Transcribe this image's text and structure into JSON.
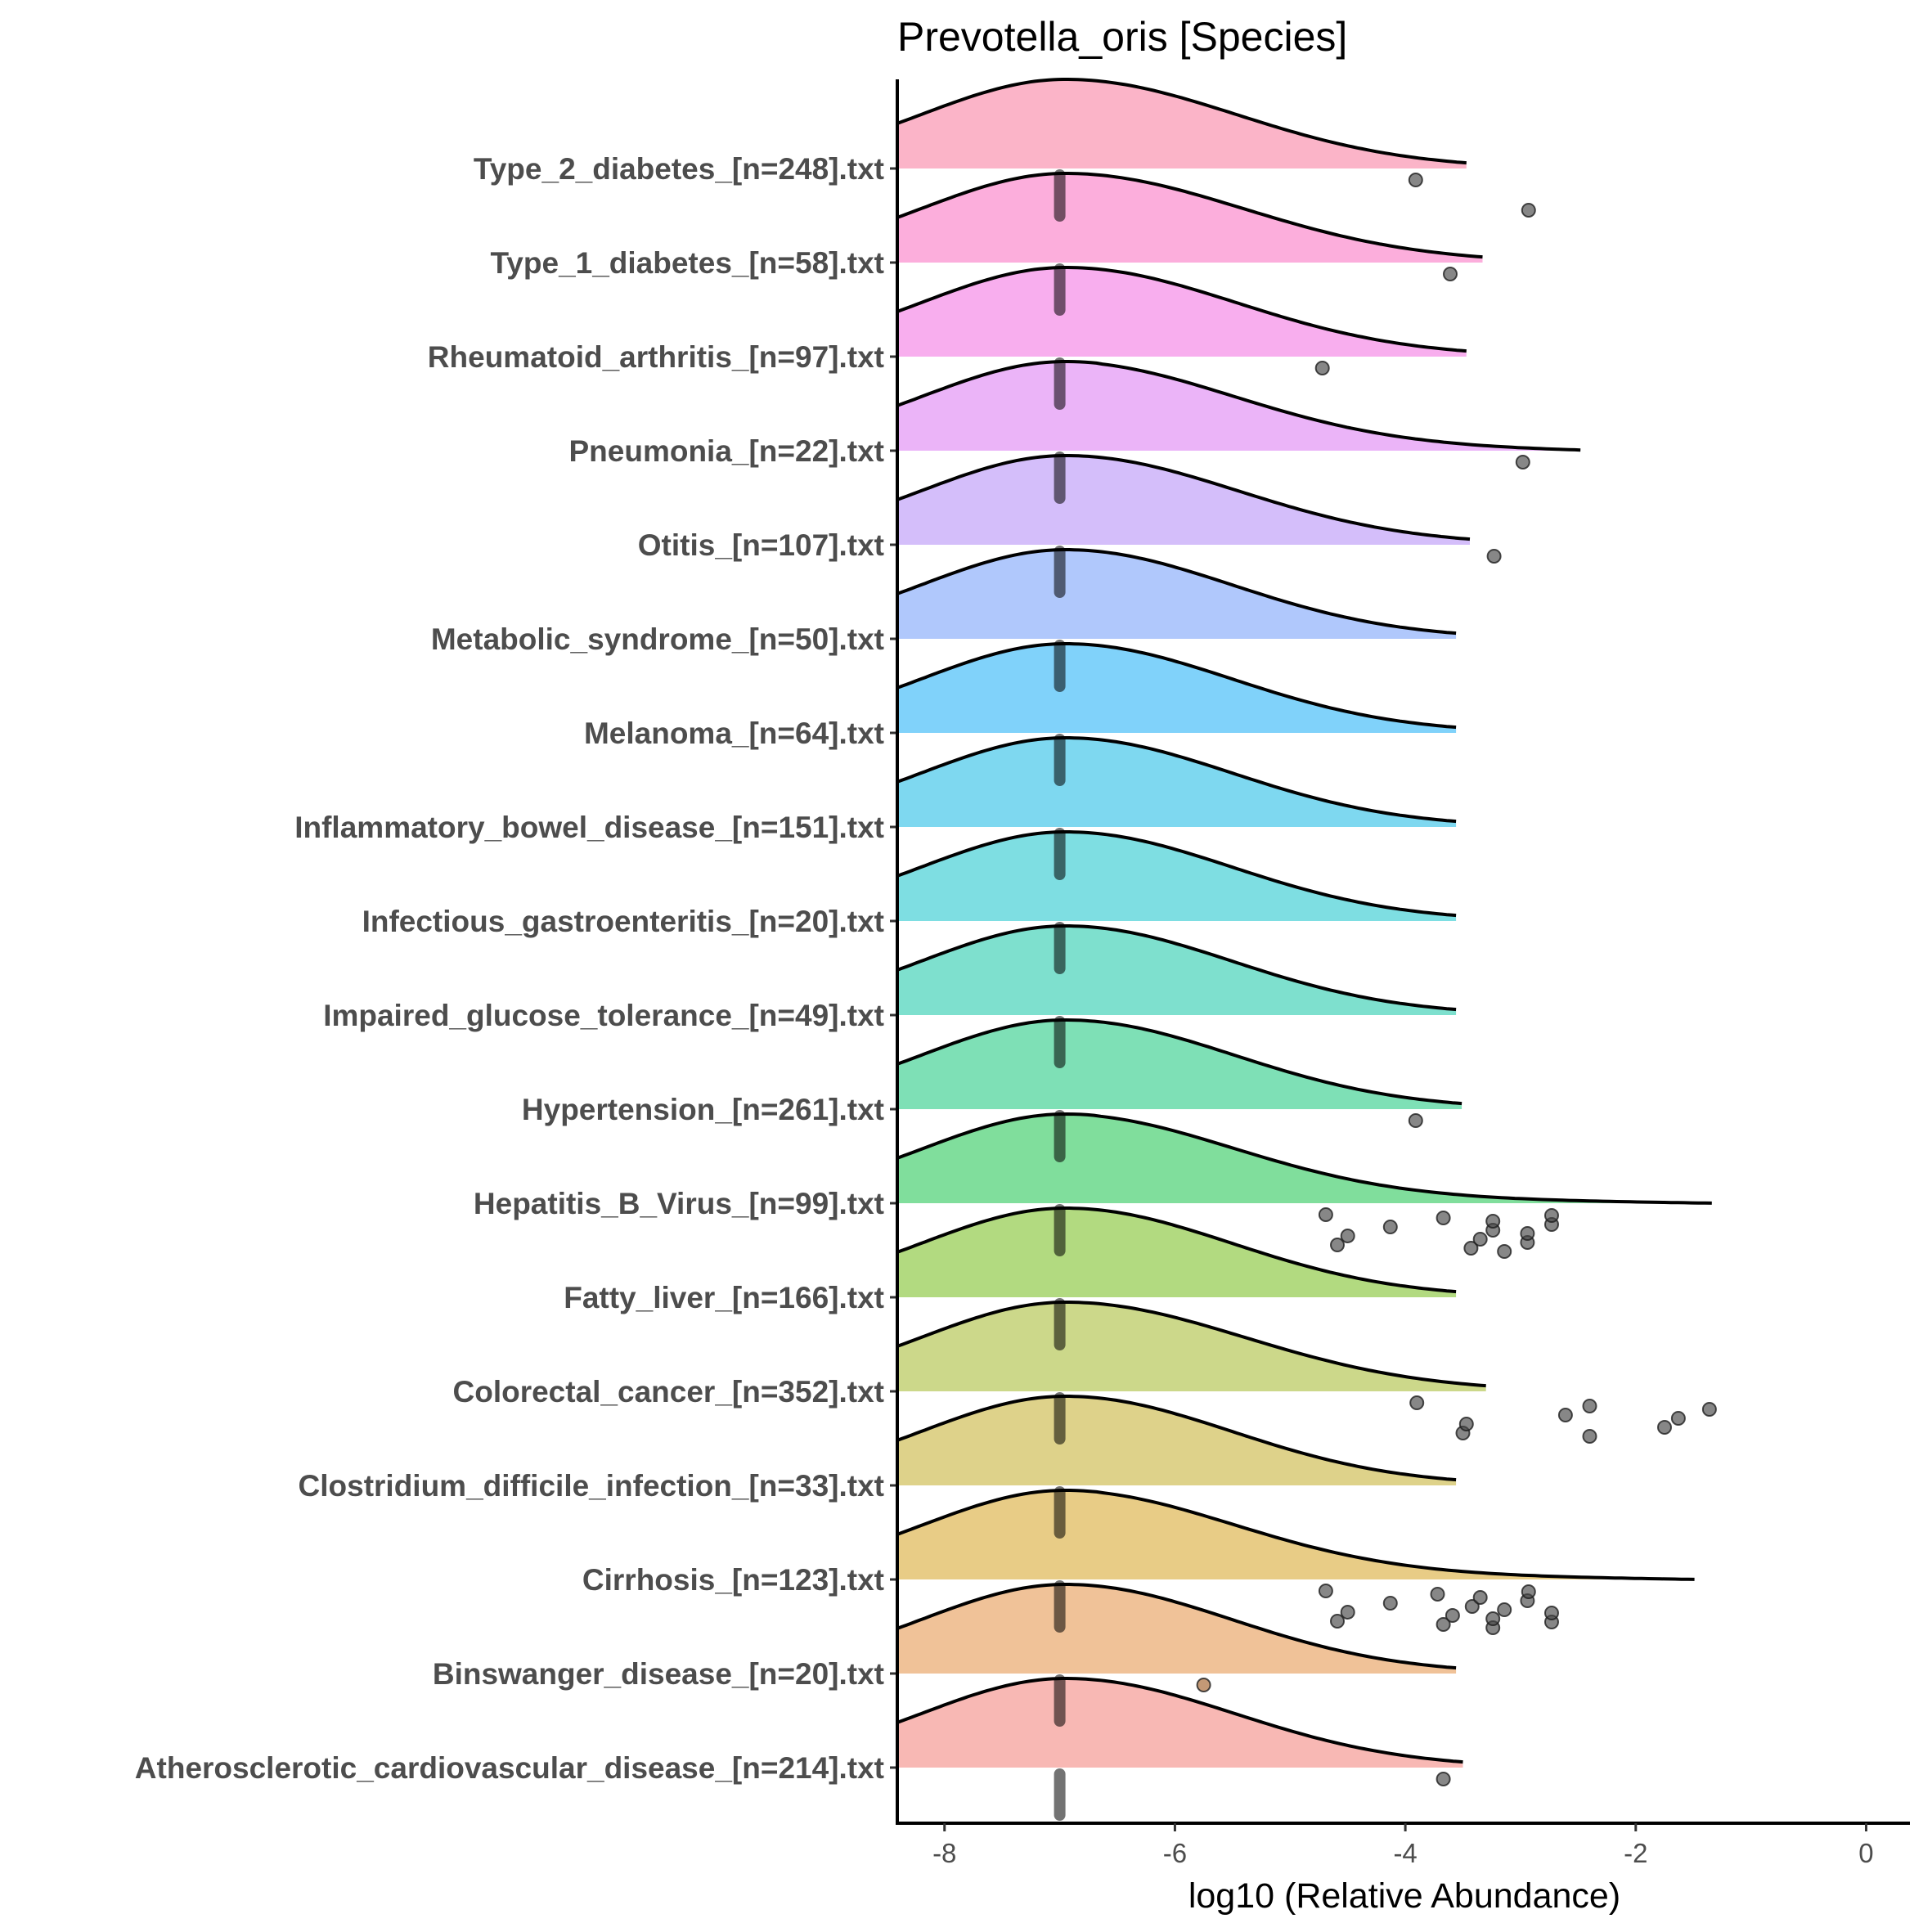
{
  "chart_data": {
    "type": "ridgeline",
    "title": "Prevotella_oris [Species]",
    "xlabel": "log10 (Relative Abundance)",
    "ylabel": "",
    "xlim": [
      -8.41,
      0.38
    ],
    "xticks": [
      -8,
      -6,
      -4,
      -2,
      0
    ],
    "xtick_labels": [
      "-8",
      "-6",
      "-4",
      "-2",
      "0"
    ],
    "grid": false,
    "legend": "none",
    "jitter_center": -7.0,
    "density_mode": -6.95,
    "categories": [
      {
        "label": "Type_2_diabetes_[n=248].txt",
        "color": "#FBB4C8",
        "tail_end": -3.47,
        "outliers": [
          -3.91,
          -2.93
        ]
      },
      {
        "label": "Type_1_diabetes_[n=58].txt",
        "color": "#FCAEDC",
        "tail_end": -3.33,
        "outliers": [
          -3.61
        ]
      },
      {
        "label": "Rheumatoid_arthritis_[n=97].txt",
        "color": "#F8AEEE",
        "tail_end": -3.47,
        "outliers": [
          -4.72
        ]
      },
      {
        "label": "Pneumonia_[n=22].txt",
        "color": "#EBB4F8",
        "tail_end": -2.48,
        "outliers": [
          -2.98
        ]
      },
      {
        "label": "Otitis_[n=107].txt",
        "color": "#D4BEFA",
        "tail_end": -3.44,
        "outliers": [
          -3.23
        ]
      },
      {
        "label": "Metabolic_syndrome_[n=50].txt",
        "color": "#B0C8FC",
        "tail_end": -3.56,
        "outliers": []
      },
      {
        "label": "Melanoma_[n=64].txt",
        "color": "#80D2FA",
        "tail_end": -3.56,
        "outliers": []
      },
      {
        "label": "Inflammatory_bowel_disease_[n=151].txt",
        "color": "#7ED8F0",
        "tail_end": -3.56,
        "outliers": []
      },
      {
        "label": "Infectious_gastroenteritis_[n=20].txt",
        "color": "#7EDEE2",
        "tail_end": -3.56,
        "outliers": []
      },
      {
        "label": "Impaired_glucose_tolerance_[n=49].txt",
        "color": "#7EE0CE",
        "tail_end": -3.56,
        "outliers": []
      },
      {
        "label": "Hypertension_[n=261].txt",
        "color": "#7EE0B6",
        "tail_end": -3.51,
        "outliers": [
          -3.91
        ]
      },
      {
        "label": "Hepatitis_B_Virus_[n=99].txt",
        "color": "#80DE9C",
        "tail_end": -1.34,
        "outliers": [
          -4.69,
          -4.59,
          -4.5,
          -4.13,
          -3.67,
          -3.43,
          -3.35,
          -3.24,
          -3.24,
          -3.14,
          -2.94,
          -2.94,
          -2.73,
          -2.73
        ]
      },
      {
        "label": "Fatty_liver_[n=166].txt",
        "color": "#B2DA80",
        "tail_end": -3.56,
        "outliers": []
      },
      {
        "label": "Colorectal_cancer_[n=352].txt",
        "color": "#CCD88A",
        "tail_end": -3.3,
        "outliers": [
          -3.9,
          -3.5,
          -3.47,
          -2.61,
          -2.4,
          -2.4,
          -1.75,
          -1.63,
          -1.36
        ]
      },
      {
        "label": "Clostridium_difficile_infection_[n=33].txt",
        "color": "#DED28A",
        "tail_end": -3.56,
        "outliers": []
      },
      {
        "label": "Cirrhosis_[n=123].txt",
        "color": "#E8CC86",
        "tail_end": -1.49,
        "outliers": [
          -4.69,
          -4.59,
          -4.5,
          -4.13,
          -3.72,
          -3.67,
          -3.59,
          -3.42,
          -3.35,
          -3.24,
          -3.24,
          -3.14,
          -2.94,
          -2.93,
          -2.73,
          -2.73
        ]
      },
      {
        "label": "Binswanger_disease_[n=20].txt",
        "color": "#F0C298",
        "tail_end": -3.56,
        "outliers": [
          -5.75
        ]
      },
      {
        "label": "Atherosclerotic_cardiovascular_disease_[n=214].txt",
        "color": "#F8B8B4",
        "tail_end": -3.5,
        "outliers": [
          -3.67
        ]
      }
    ]
  }
}
